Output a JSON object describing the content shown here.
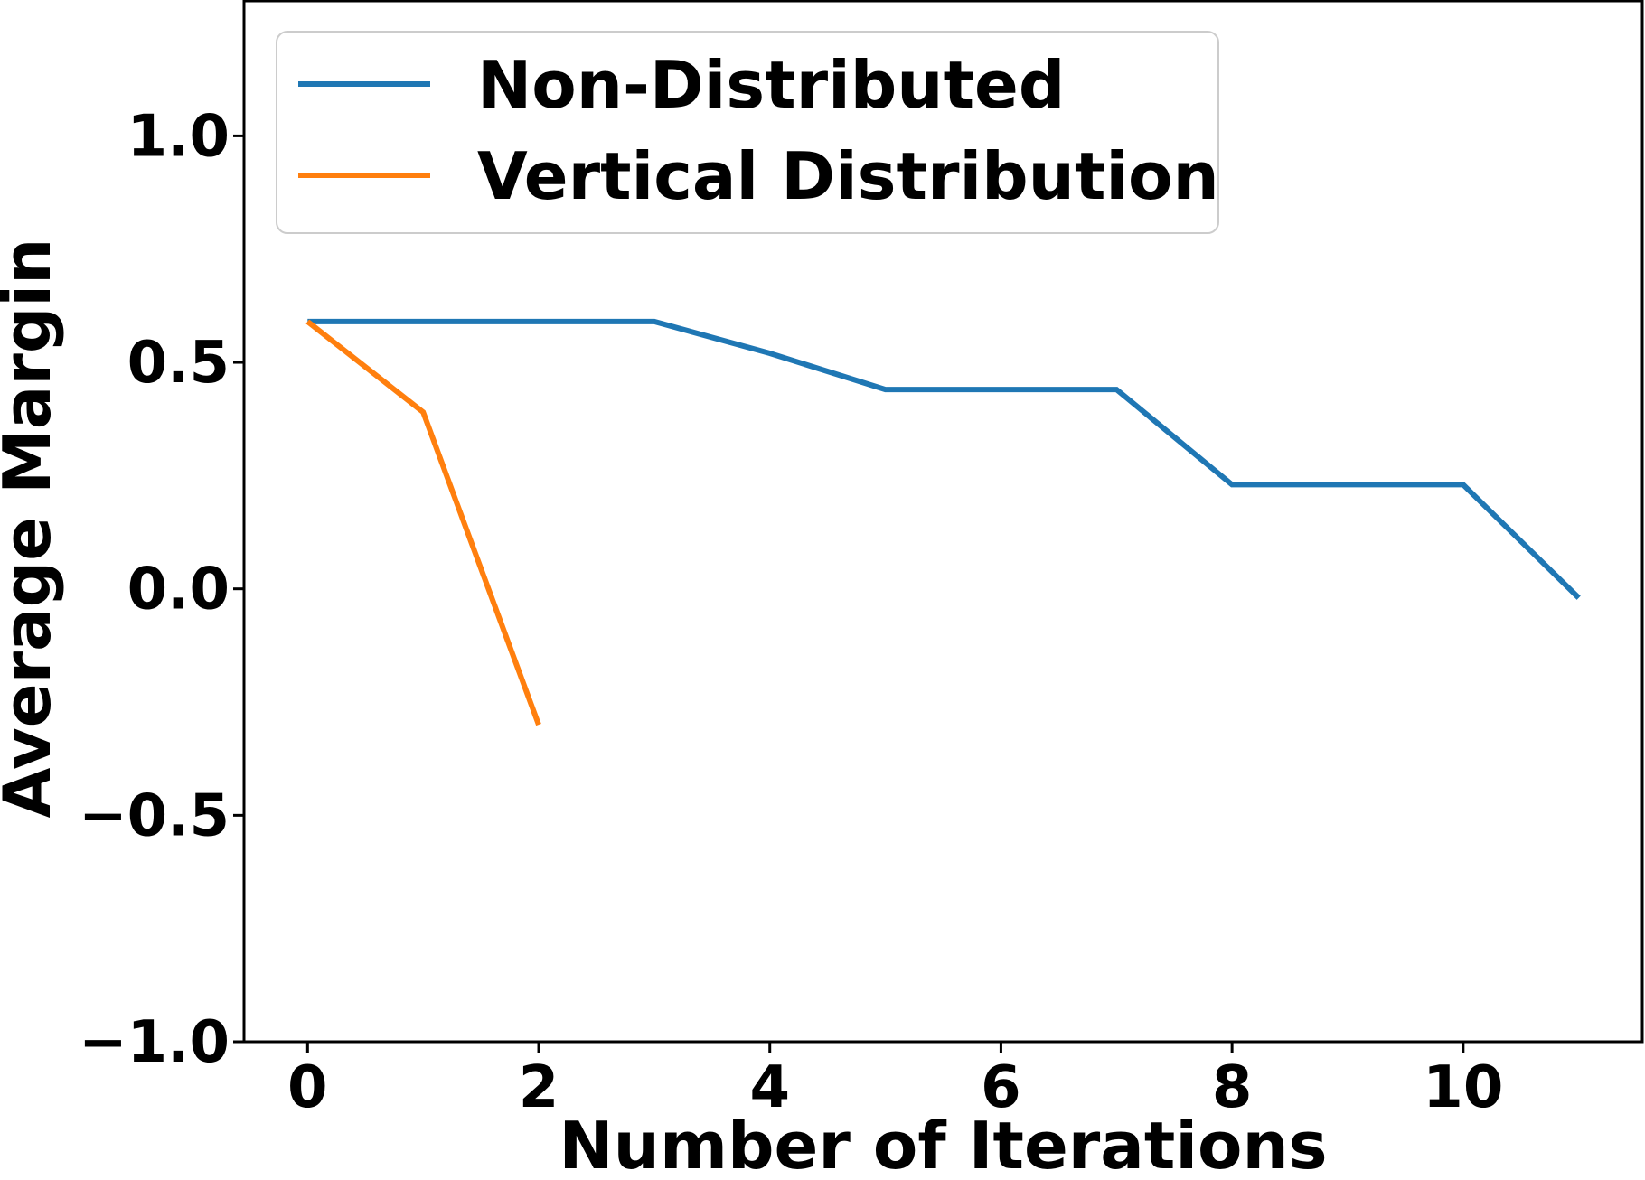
{
  "chart_data": {
    "type": "line",
    "title": "",
    "xlabel": "Number of Iterations",
    "ylabel": "Average Margin",
    "xlim": [
      -0.55,
      11.55
    ],
    "ylim": [
      -1.0,
      1.3
    ],
    "xticks": [
      0,
      2,
      4,
      6,
      8,
      10
    ],
    "xtick_labels": [
      "0",
      "2",
      "4",
      "6",
      "8",
      "10"
    ],
    "yticks": [
      -1.0,
      -0.5,
      0.0,
      0.5,
      1.0
    ],
    "ytick_labels": [
      "−1.0",
      "−0.5",
      "0.0",
      "0.5",
      "1.0"
    ],
    "grid": false,
    "legend_position": "top-left",
    "series": [
      {
        "name": "Non-Distributed",
        "color": "#1f77b4",
        "x": [
          0,
          1,
          2,
          3,
          4,
          5,
          6,
          7,
          8,
          9,
          10,
          11
        ],
        "values": [
          0.59,
          0.59,
          0.59,
          0.59,
          0.52,
          0.44,
          0.44,
          0.44,
          0.23,
          0.23,
          0.23,
          -0.02
        ]
      },
      {
        "name": "Vertical Distribution",
        "color": "#ff7f0e",
        "x": [
          0,
          1,
          2
        ],
        "values": [
          0.59,
          0.39,
          -0.3
        ]
      }
    ]
  }
}
